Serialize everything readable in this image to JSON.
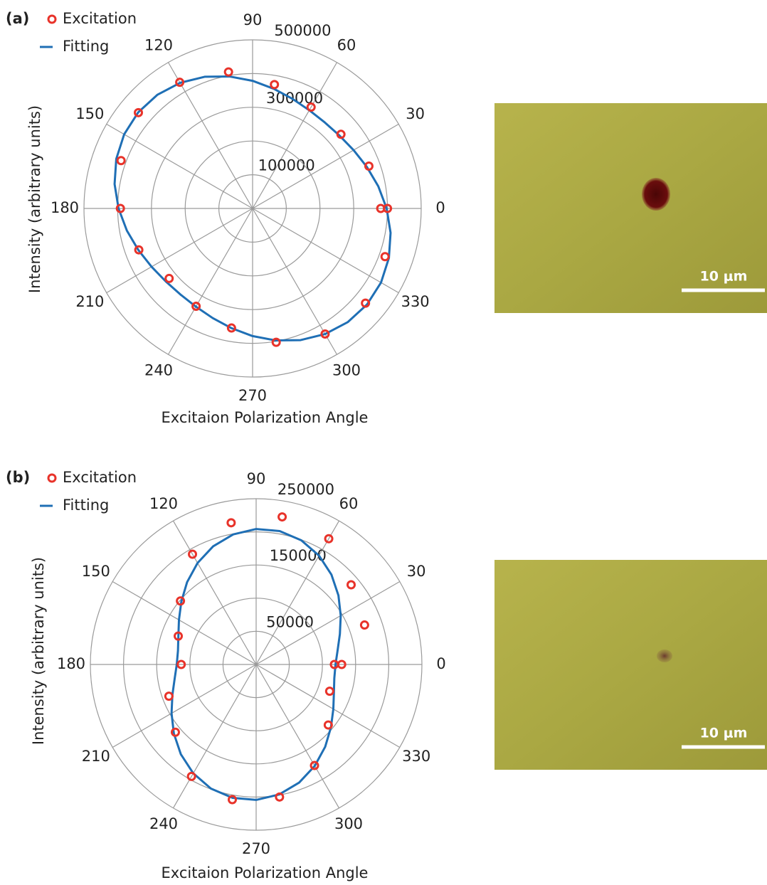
{
  "chart_data": [
    {
      "type": "polar",
      "panel_label": "(a)",
      "ylabel": "Intensity (arbitrary units)",
      "xlabel": "Excitaion Polarization Angle",
      "rlim": [
        0,
        500000
      ],
      "rticks": [
        100000,
        {
          "value": 200000,
          "label": null
        },
        300000,
        {
          "value": 400000,
          "label": null
        },
        500000
      ],
      "thetaticks": [
        0,
        30,
        60,
        90,
        120,
        150,
        180,
        210,
        240,
        270,
        300,
        330
      ],
      "grid": true,
      "legend": "top-left",
      "series": [
        {
          "name": "Excitation",
          "kind": "scatter",
          "color": "#e8332a",
          "theta": [
            0,
            20,
            40,
            60,
            80,
            100,
            120,
            140,
            160,
            180,
            200,
            220,
            240,
            260,
            280,
            300,
            320,
            340,
            360
          ],
          "values": [
            380000,
            367000,
            342000,
            347000,
            373000,
            411000,
            432000,
            442000,
            415000,
            392000,
            359000,
            323000,
            335000,
            360000,
            403000,
            430000,
            437000,
            418000,
            400000
          ]
        },
        {
          "name": "Fitting",
          "kind": "line",
          "color": "#1f6fb5",
          "theta": [
            0,
            10,
            20,
            30,
            40,
            50,
            60,
            70,
            80,
            90,
            100,
            110,
            120,
            130,
            140,
            150,
            160,
            170,
            180,
            190,
            200,
            210,
            220,
            230,
            240,
            250,
            260,
            270,
            280,
            290,
            300,
            310,
            320,
            330,
            340,
            350,
            360
          ],
          "values": [
            397500,
            378500,
            360500,
            345900,
            336300,
            333000,
            336300,
            345900,
            360500,
            378500,
            397500,
            415500,
            430100,
            439700,
            443000,
            439700,
            430100,
            415500,
            397500,
            378500,
            360500,
            345900,
            336300,
            333000,
            336300,
            345900,
            360500,
            378500,
            397500,
            415500,
            430100,
            439700,
            443000,
            439700,
            430100,
            415500,
            397500
          ]
        }
      ]
    },
    {
      "type": "polar",
      "panel_label": "(b)",
      "ylabel": "Intensity (arbitrary units)",
      "xlabel": "Excitaion Polarization Angle",
      "rlim": [
        0,
        250000
      ],
      "rticks": [
        50000,
        {
          "value": 100000,
          "label": null
        },
        150000,
        {
          "value": 200000,
          "label": null
        },
        250000
      ],
      "thetaticks": [
        0,
        30,
        60,
        90,
        120,
        150,
        180,
        210,
        240,
        270,
        300,
        330
      ],
      "grid": true,
      "legend": "top-left",
      "series": [
        {
          "name": "Excitation",
          "kind": "scatter",
          "color": "#e8332a",
          "theta": [
            0,
            20,
            40,
            60,
            80,
            100,
            120,
            140,
            160,
            180,
            200,
            220,
            240,
            260,
            280,
            300,
            320,
            340,
            360
          ],
          "values": [
            118000,
            174000,
            187000,
            219000,
            226000,
            217000,
            192000,
            149000,
            125000,
            113000,
            140000,
            159000,
            195000,
            207000,
            203000,
            176000,
            142000,
            118000,
            129000
          ]
        },
        {
          "name": "Fitting",
          "kind": "line",
          "color": "#1f6fb5",
          "theta": [
            0,
            10,
            20,
            30,
            40,
            50,
            60,
            70,
            80,
            90,
            100,
            110,
            120,
            130,
            140,
            150,
            160,
            170,
            180,
            190,
            200,
            210,
            220,
            230,
            240,
            250,
            260,
            270,
            280,
            290,
            300,
            310,
            320,
            330,
            340,
            350,
            360
          ],
          "values": [
            119700,
            124800,
            134400,
            147300,
            162000,
            176700,
            189600,
            199200,
            204300,
            204300,
            199200,
            189600,
            176700,
            162000,
            147300,
            134400,
            124800,
            119700,
            119700,
            124800,
            134400,
            147300,
            162000,
            176700,
            189600,
            199200,
            204300,
            204300,
            199200,
            189600,
            176700,
            162000,
            147300,
            134400,
            124800,
            119700,
            119700
          ]
        }
      ]
    }
  ],
  "images": [
    {
      "scale_bar_label": "10 μm"
    },
    {
      "scale_bar_label": "10 μm"
    }
  ]
}
